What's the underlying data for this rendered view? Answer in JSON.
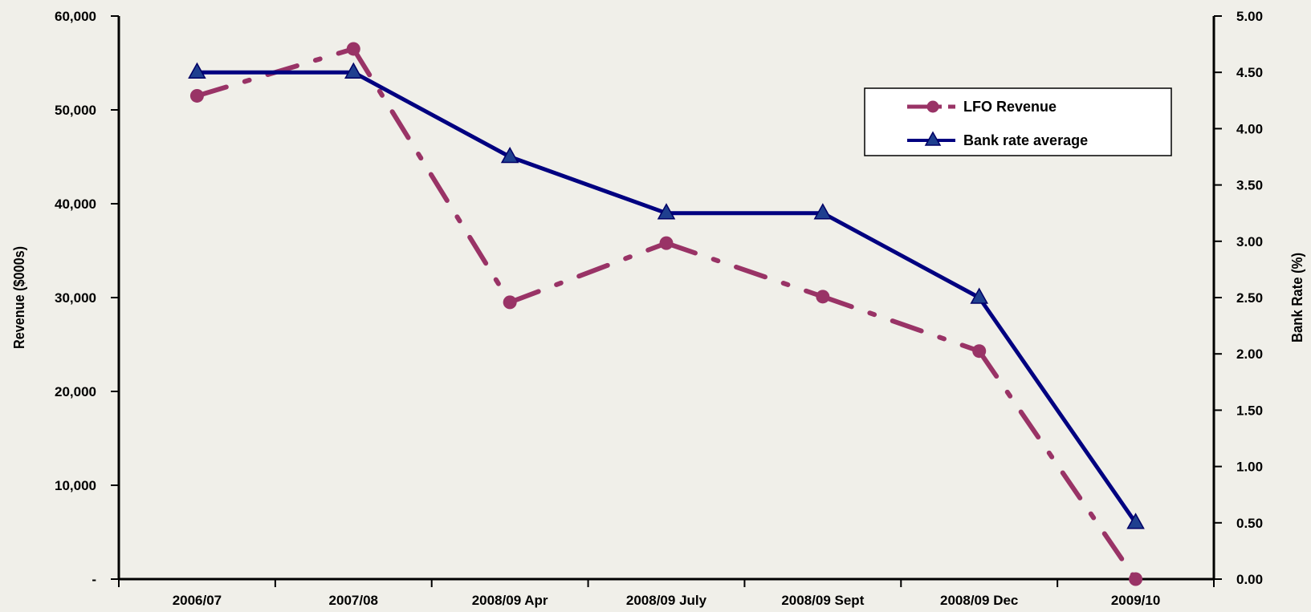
{
  "chart_data": {
    "type": "line",
    "categories": [
      "2006/07",
      "2007/08",
      "2008/09 Apr",
      "2008/09 July",
      "2008/09 Sept",
      "2008/09 Dec",
      "2009/10"
    ],
    "series": [
      {
        "name": "LFO Revenue",
        "axis": "left",
        "color": "#993366",
        "line_style": "dash-dot",
        "marker": "circle",
        "values": [
          51500,
          56500,
          29500,
          35800,
          30100,
          24300,
          0
        ]
      },
      {
        "name": "Bank rate average",
        "axis": "right",
        "color": "#000080",
        "line_style": "solid",
        "marker": "triangle",
        "values": [
          4.5,
          4.5,
          3.75,
          3.25,
          3.25,
          2.5,
          0.5
        ]
      }
    ],
    "left_axis": {
      "label": "Revenue ($000s)",
      "ylim": [
        0,
        60000
      ],
      "ticks": [
        0,
        10000,
        20000,
        30000,
        40000,
        50000,
        60000
      ],
      "tick_labels": [
        "-",
        "10,000",
        "20,000",
        "30,000",
        "40,000",
        "50,000",
        "60,000"
      ]
    },
    "right_axis": {
      "label": "Bank Rate (%)",
      "ylim": [
        0,
        5
      ],
      "ticks": [
        0,
        0.5,
        1,
        1.5,
        2,
        2.5,
        3,
        3.5,
        4,
        4.5,
        5
      ],
      "tick_labels": [
        "0.00",
        "0.50",
        "1.00",
        "1.50",
        "2.00",
        "2.50",
        "3.00",
        "3.50",
        "4.00",
        "4.50",
        "5.00"
      ]
    },
    "legend": {
      "position": "top-right"
    },
    "grid": false
  }
}
